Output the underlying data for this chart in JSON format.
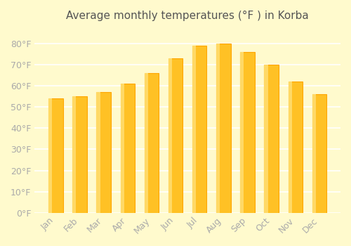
{
  "title": "Average monthly temperatures (°F ) in Korba",
  "months": [
    "Jan",
    "Feb",
    "Mar",
    "Apr",
    "May",
    "Jun",
    "Jul",
    "Aug",
    "Sep",
    "Oct",
    "Nov",
    "Dec"
  ],
  "values": [
    54,
    55,
    57,
    61,
    66,
    73,
    79,
    80,
    76,
    70,
    62,
    56
  ],
  "bar_color_face": "#FFC125",
  "bar_color_edge": "#FFA500",
  "background_color": "#FFFACD",
  "grid_color": "#FFFFFF",
  "ylim": [
    0,
    88
  ],
  "yticks": [
    0,
    10,
    20,
    30,
    40,
    50,
    60,
    70,
    80
  ],
  "ytick_labels": [
    "0°F",
    "10°F",
    "20°F",
    "30°F",
    "40°F",
    "50°F",
    "60°F",
    "70°F",
    "80°F"
  ],
  "title_fontsize": 11,
  "tick_fontsize": 9,
  "tick_color": "#AAAAAA",
  "spine_color": "#CCCCCC"
}
